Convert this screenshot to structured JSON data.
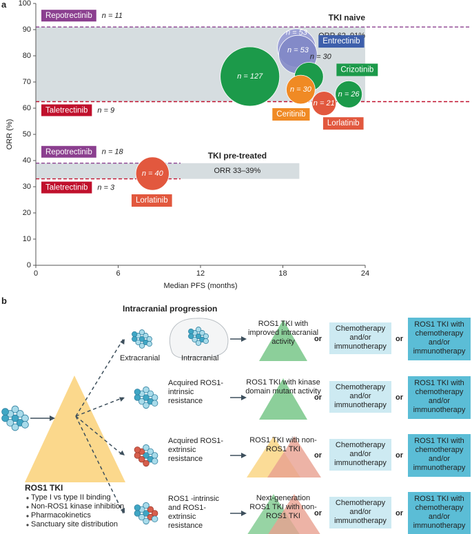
{
  "chart_data": {
    "type": "bubble",
    "panel_label": "a",
    "xlabel": "Median PFS (months)",
    "ylabel": "ORR (%)",
    "xlim": [
      0,
      24
    ],
    "ylim": [
      0,
      100
    ],
    "xticks": [
      0,
      6,
      12,
      18,
      24
    ],
    "yticks": [
      0,
      10,
      20,
      30,
      40,
      50,
      60,
      70,
      80,
      90,
      100
    ],
    "grid": false,
    "groups": [
      {
        "title": "TKI naive",
        "orr_label": "ORR 62–91%",
        "band_color": "#d6dde0",
        "band_xlim": [
          0,
          24
        ],
        "lines": [
          {
            "name": "Repotrectinib",
            "n_label": "n = 11",
            "n": 11,
            "value": 91,
            "color": "#8b3f8f"
          },
          {
            "name": "Taletrectinib",
            "n_label": "n = 9",
            "n": 9,
            "value": 62.5,
            "color": "#c0102c"
          }
        ]
      },
      {
        "title": "TKI pre-treated",
        "orr_label": "ORR 33–39%",
        "band_color": "#d6dde0",
        "band_xlim": [
          0,
          19.2
        ],
        "lines": [
          {
            "name": "Repotrectinib",
            "n_label": "n = 18",
            "n": 18,
            "value": 39,
            "color": "#8b3f8f"
          },
          {
            "name": "Taletrectinib",
            "n_label": "n = 3",
            "n": 3,
            "value": 33,
            "color": "#c0102c"
          }
        ]
      }
    ],
    "bubbles": [
      {
        "x": 15.6,
        "y": 72.1,
        "n": 127,
        "n_label": "n = 127",
        "color": "#1c9a4a"
      },
      {
        "x": 19.0,
        "y": 83,
        "n": 53,
        "n_label": "n = 53",
        "color": "#9ca1d6"
      },
      {
        "name": "Entrectinib",
        "x": 19.1,
        "y": 80.5,
        "n": 53,
        "n_label": "n = 53",
        "color": "#3d5fab",
        "fill": "#7f86c6"
      },
      {
        "name": "Crizotinib",
        "x": 19.9,
        "y": 72,
        "n": 30,
        "n_label": "n = 30",
        "color": "#1c9a4a"
      },
      {
        "name": "Ceritinib",
        "x": 19.3,
        "y": 67.1,
        "n": 30,
        "n_label": "n = 30",
        "color": "#f08a24"
      },
      {
        "name": "Lorlatinib",
        "x": 21.0,
        "y": 61.8,
        "n": 21,
        "n_label": "n = 21",
        "color": "#e2583e"
      },
      {
        "x": 22.8,
        "y": 65.3,
        "n": 26,
        "n_label": "n = 26",
        "color": "#1c9a4a"
      },
      {
        "name": "Lorlatinib",
        "x": 8.5,
        "y": 35,
        "n": 40,
        "n_label": "n = 40",
        "color": "#e2583e"
      }
    ]
  },
  "diagram": {
    "panel_label": "b",
    "title": "Intracranial progression",
    "ros1_tki": {
      "title": "ROS1 TKI",
      "bullets": [
        "Type I vs type II binding",
        "Non-ROS1 kinase inhibition",
        "Pharmacokinetics",
        "Sanctuary site distribution"
      ]
    },
    "connector": "or",
    "rows": [
      {
        "states": [
          "Extracranial",
          "Intracranial"
        ],
        "treatment": "ROS1 TKI with improved intracranial activity",
        "alternatives": [
          "Chemotherapy and/or immunotherapy",
          "ROS1 TKI with chemotherapy and/or immunotherapy"
        ]
      },
      {
        "states": [
          "Acquired ROS1-intrinsic resistance"
        ],
        "treatment": "ROS1 TKI with kinase domain mutant activity",
        "alternatives": [
          "Chemotherapy and/or immunotherapy",
          "ROS1 TKI with chemotherapy and/or immunotherapy"
        ]
      },
      {
        "states": [
          "Acquired ROS1-extrinsic resistance"
        ],
        "treatment": "ROS1 TKI with non-ROS1 TKI",
        "alternatives": [
          "Chemotherapy and/or immunotherapy",
          "ROS1 TKI with chemotherapy and/or immunotherapy"
        ]
      },
      {
        "states": [
          "ROS1 -intrinsic and ROS1-extrinsic resistance"
        ],
        "treatment": "Next-generation ROS1 TKI with non-ROS1 TKI",
        "alternatives": [
          "Chemotherapy and/or immunotherapy",
          "ROS1 TKI with chemotherapy and/or immunotherapy"
        ]
      }
    ]
  }
}
